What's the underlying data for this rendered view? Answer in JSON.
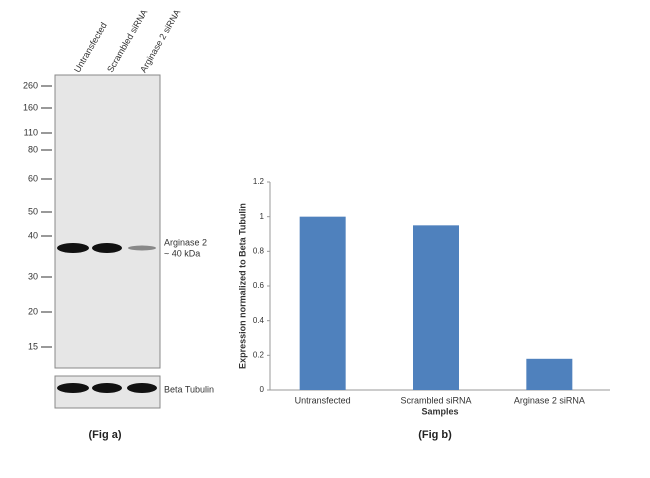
{
  "blot": {
    "lanes": [
      "Untransfected",
      "Scrambled siRNA",
      "Arginase 2 siRNA"
    ],
    "markers": [
      "260",
      "160",
      "110",
      "80",
      "60",
      "50",
      "40",
      "30",
      "20",
      "15"
    ],
    "band_label": "Arginase 2",
    "band_size": "~ 40 kDa",
    "control_label": "Beta Tubulin",
    "caption": "(Fig a)"
  },
  "chart_data": {
    "type": "bar",
    "categories": [
      "Untransfected",
      "Scrambled siRNA",
      "Arginase 2 siRNA"
    ],
    "values": [
      1,
      0.95,
      0.18
    ],
    "color": "#4f81bd",
    "ylim": [
      0,
      1.2
    ],
    "yticks": [
      0,
      0.2,
      0.4,
      0.6,
      0.8,
      1,
      1.2
    ],
    "xlabel": "Samples",
    "ylabel": "Expression  normalized to Beta Tubulin",
    "caption": "(Fig b)"
  }
}
